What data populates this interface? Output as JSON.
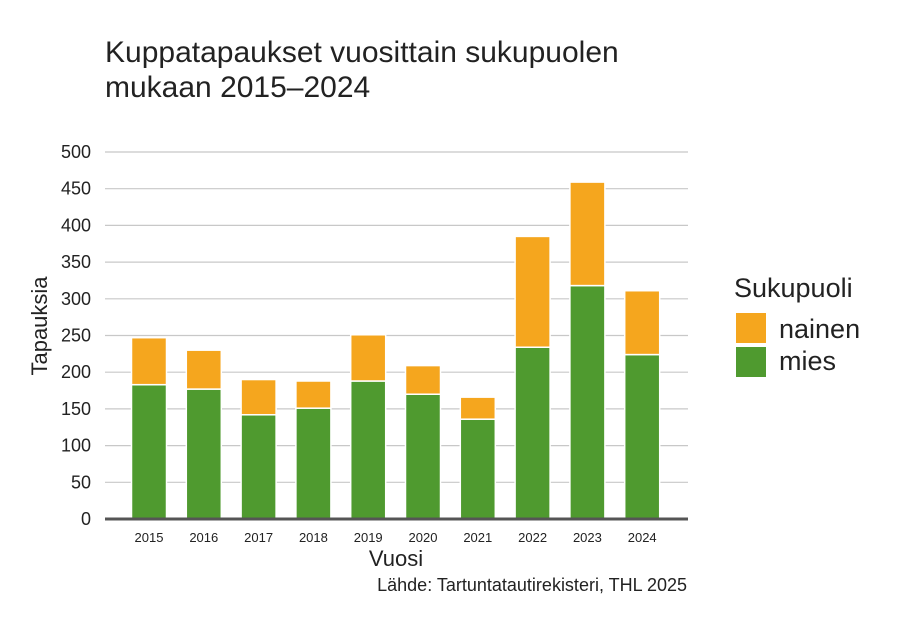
{
  "chart_data": {
    "type": "bar",
    "stacked": true,
    "title_lines": [
      "Kuppatapaukset vuosittain sukupuolen",
      "mukaan 2015–2024"
    ],
    "xlabel": "Vuosi",
    "ylabel": "Tapauksia",
    "ylim": [
      0,
      500
    ],
    "yticks": [
      0,
      50,
      100,
      150,
      200,
      250,
      300,
      350,
      400,
      450,
      500
    ],
    "grid": true,
    "categories": [
      "2015",
      "2016",
      "2017",
      "2018",
      "2019",
      "2020",
      "2021",
      "2022",
      "2023",
      "2024"
    ],
    "series": [
      {
        "name": "mies",
        "color": "#4f9a2f",
        "values": [
          183,
          177,
          142,
          151,
          188,
          170,
          136,
          234,
          318,
          224
        ]
      },
      {
        "name": "nainen",
        "color": "#f5a61e",
        "values": [
          64,
          53,
          48,
          37,
          63,
          39,
          30,
          151,
          141,
          87
        ]
      }
    ],
    "legend": {
      "title": "Sukupuoli",
      "position": "right",
      "order": [
        "nainen",
        "mies"
      ]
    },
    "source": "Lähde: Tartuntatautirekisteri, THL 2025",
    "colors": {
      "grid": "#c8c8c8",
      "axis": "#555555",
      "separator": "#ffffff"
    }
  }
}
